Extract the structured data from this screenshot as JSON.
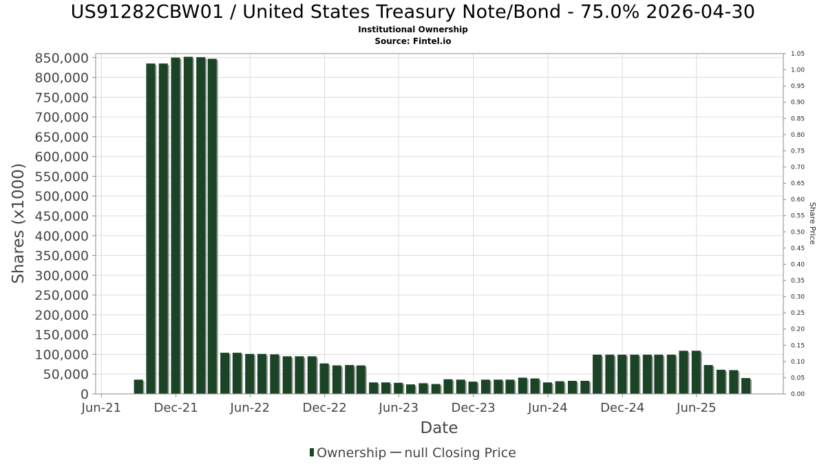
{
  "chart_data": {
    "type": "bar",
    "title": "US91282CBW01 / United States Treasury Note/Bond - 75.0% 2026-04-30",
    "subtitle": "Institutional Ownership",
    "source": "Source: Fintel.io",
    "xlabel": "Date",
    "ylabel": "Shares (x1000)",
    "y2label": "Share Price",
    "ylim": [
      0,
      860000
    ],
    "y2lim": [
      0,
      1.05
    ],
    "y_ticks": [
      0,
      50000,
      100000,
      150000,
      200000,
      250000,
      300000,
      350000,
      400000,
      450000,
      500000,
      550000,
      600000,
      650000,
      700000,
      750000,
      800000,
      850000
    ],
    "y_tick_labels": [
      "0",
      "50,000",
      "100,000",
      "150,000",
      "200,000",
      "250,000",
      "300,000",
      "350,000",
      "400,000",
      "450,000",
      "500,000",
      "550,000",
      "600,000",
      "650,000",
      "700,000",
      "750,000",
      "800,000",
      "850,000"
    ],
    "y2_ticks": [
      0,
      0.05,
      0.1,
      0.15,
      0.2,
      0.25,
      0.3,
      0.35,
      0.4,
      0.45,
      0.5,
      0.55,
      0.6,
      0.65,
      0.7,
      0.75,
      0.8,
      0.85,
      0.9,
      0.95,
      1.0,
      1.05
    ],
    "y2_tick_labels": [
      "0.00",
      "0.05",
      "0.10",
      "0.15",
      "0.20",
      "0.25",
      "0.30",
      "0.35",
      "0.40",
      "0.45",
      "0.50",
      "0.55",
      "0.60",
      "0.65",
      "0.70",
      "0.75",
      "0.80",
      "0.85",
      "0.90",
      "0.95",
      "1.00",
      "1.05"
    ],
    "x_range": [
      "2021-05-18",
      "2025-12-31"
    ],
    "x_ticks": [
      "2021-06-01",
      "2021-12-01",
      "2022-06-01",
      "2022-12-01",
      "2023-06-01",
      "2023-12-01",
      "2024-06-01",
      "2024-12-01",
      "2025-06-01"
    ],
    "x_tick_labels": [
      "Jun-21",
      "Dec-21",
      "Jun-22",
      "Dec-22",
      "Jun-23",
      "Dec-23",
      "Jun-24",
      "Dec-24",
      "Jun-25"
    ],
    "grid": true,
    "legend_position": "bottom",
    "colors": {
      "bar": "#1b4427",
      "bar_shadow": "#999999",
      "grid": "#dddddd",
      "axis": "#888888"
    },
    "series": [
      {
        "name": "Ownership",
        "x": [
          "2021-08-31",
          "2021-09-30",
          "2021-10-31",
          "2021-11-30",
          "2021-12-31",
          "2022-01-31",
          "2022-02-28",
          "2022-03-31",
          "2022-04-30",
          "2022-05-31",
          "2022-06-30",
          "2022-07-31",
          "2022-08-31",
          "2022-09-30",
          "2022-10-31",
          "2022-11-30",
          "2022-12-31",
          "2023-01-31",
          "2023-02-28",
          "2023-03-31",
          "2023-04-30",
          "2023-05-31",
          "2023-06-30",
          "2023-07-31",
          "2023-08-31",
          "2023-09-30",
          "2023-10-31",
          "2023-11-30",
          "2023-12-31",
          "2024-01-31",
          "2024-02-29",
          "2024-03-31",
          "2024-04-30",
          "2024-05-31",
          "2024-06-30",
          "2024-07-31",
          "2024-08-31",
          "2024-09-30",
          "2024-10-31",
          "2024-11-30",
          "2024-12-31",
          "2025-01-31",
          "2025-02-28",
          "2025-03-31",
          "2025-04-30",
          "2025-05-31",
          "2025-06-30",
          "2025-07-31",
          "2025-08-31",
          "2025-09-30"
        ],
        "values": [
          36000,
          835000,
          835000,
          850000,
          852000,
          851000,
          847000,
          104000,
          104000,
          101000,
          101000,
          100000,
          95000,
          95000,
          95000,
          77000,
          72000,
          73000,
          72000,
          29000,
          29000,
          28000,
          24000,
          27000,
          25000,
          37000,
          36000,
          31000,
          36000,
          36000,
          36000,
          41000,
          39000,
          29000,
          32000,
          33000,
          33000,
          99000,
          99000,
          99000,
          99000,
          99000,
          99000,
          99000,
          109000,
          109000,
          73000,
          61000,
          60000,
          40000
        ]
      },
      {
        "name": "null Closing Price",
        "values": []
      }
    ]
  }
}
